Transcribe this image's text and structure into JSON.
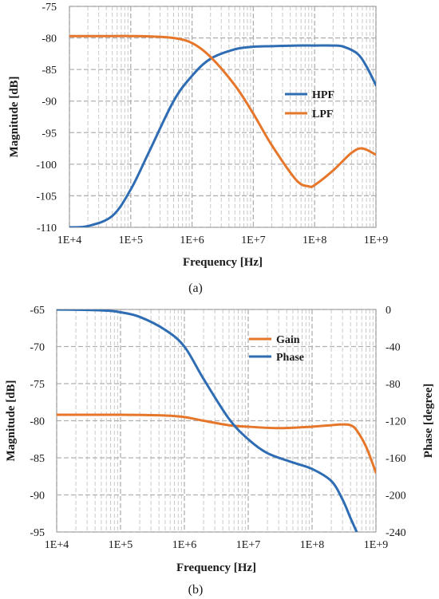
{
  "chart_data": [
    {
      "type": "line",
      "caption": "(a)",
      "xlabel": "Frequency [Hz]",
      "ylabel": "Magnitude [dB]",
      "x_scale": "log",
      "xlim": [
        10000,
        1000000000
      ],
      "ylim": [
        -110,
        -75
      ],
      "x_ticks": [
        "1E+4",
        "1E+5",
        "1E+6",
        "1E+7",
        "1E+8",
        "1E+9"
      ],
      "y_ticks": [
        "-75",
        "-80",
        "-85",
        "-90",
        "-95",
        "-100",
        "-105",
        "-110"
      ],
      "grid": true,
      "legend_position": "right-center",
      "series": [
        {
          "name": "HPF",
          "color": "#2e6db4",
          "x": [
            10000,
            20000,
            50000,
            100000,
            200000,
            500000,
            1000000,
            2000000,
            5000000,
            10000000,
            20000000,
            50000000,
            100000000,
            200000000,
            300000000,
            500000000,
            700000000,
            1000000000
          ],
          "y": [
            -110,
            -109.8,
            -108.2,
            -104,
            -98,
            -90,
            -86,
            -83.3,
            -81.8,
            -81.4,
            -81.3,
            -81.2,
            -81.2,
            -81.2,
            -81.4,
            -82.5,
            -84.5,
            -87.5
          ]
        },
        {
          "name": "LPF",
          "color": "#e6762a",
          "x": [
            10000,
            50000,
            100000,
            200000,
            500000,
            1000000,
            2000000,
            5000000,
            10000000,
            20000000,
            50000000,
            80000000,
            100000000,
            200000000,
            400000000,
            600000000,
            1000000000
          ],
          "y": [
            -79.7,
            -79.7,
            -79.7,
            -79.75,
            -80,
            -80.8,
            -83,
            -87.5,
            -92,
            -97,
            -102.5,
            -103.5,
            -103.3,
            -101,
            -98.2,
            -97.5,
            -98.5
          ]
        }
      ]
    },
    {
      "type": "line",
      "caption": "(b)",
      "xlabel": "Frequency [Hz]",
      "ylabel": "Magnitude [dB]",
      "y2label": "Phase [degree]",
      "x_scale": "log",
      "xlim": [
        10000,
        1000000000
      ],
      "ylim": [
        -95,
        -65
      ],
      "y2lim": [
        -240,
        0
      ],
      "x_ticks": [
        "1E+4",
        "1E+5",
        "1E+6",
        "1E+7",
        "1E+8",
        "1E+9"
      ],
      "y_ticks": [
        "-65",
        "-70",
        "-75",
        "-80",
        "-85",
        "-90",
        "-95"
      ],
      "y2_ticks": [
        "0",
        "-40",
        "-80",
        "-120",
        "-160",
        "-200",
        "-240"
      ],
      "grid": true,
      "legend_position": "top-right",
      "series": [
        {
          "name": "Gain",
          "axis": "left",
          "color": "#e6762a",
          "x": [
            10000,
            100000,
            500000,
            1000000,
            2000000,
            5000000,
            10000000,
            30000000,
            100000000,
            200000000,
            300000000,
            400000000,
            500000000,
            700000000,
            1000000000
          ],
          "y": [
            -79.2,
            -79.2,
            -79.3,
            -79.5,
            -80,
            -80.6,
            -80.8,
            -81,
            -80.8,
            -80.6,
            -80.5,
            -80.6,
            -81.3,
            -83.5,
            -87
          ]
        },
        {
          "name": "Phase",
          "axis": "right",
          "color": "#2e6db4",
          "x": [
            10000,
            50000,
            100000,
            200000,
            500000,
            1000000,
            2000000,
            5000000,
            10000000,
            20000000,
            50000000,
            100000000,
            200000000,
            300000000,
            400000000,
            500000000
          ],
          "y": [
            0,
            -1,
            -3,
            -8,
            -22,
            -40,
            -75,
            -118,
            -140,
            -155,
            -165,
            -172,
            -185,
            -205,
            -225,
            -240
          ]
        }
      ]
    }
  ]
}
